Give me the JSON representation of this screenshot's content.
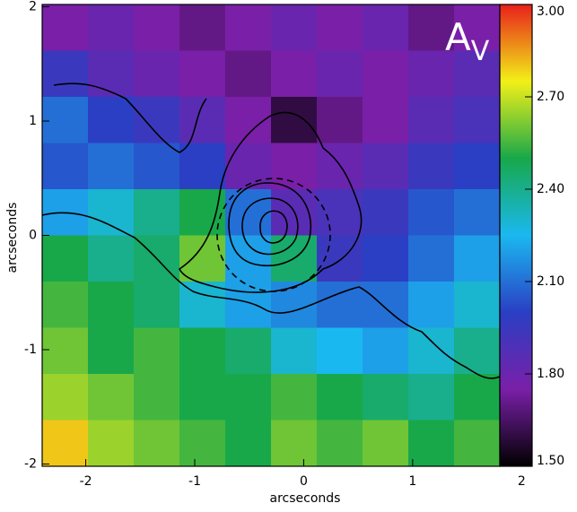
{
  "chart_data": {
    "type": "heatmap",
    "xlabel": "arcseconds",
    "ylabel": "arcseconds",
    "annotation": "A",
    "annotation_sub": "V",
    "xlim": [
      -2.4,
      1.8
    ],
    "ylim": [
      -2.02,
      2.02
    ],
    "xticks": [
      -2,
      -1,
      0,
      1,
      2
    ],
    "yticks": [
      -2,
      -1,
      0,
      1,
      2
    ],
    "clim": [
      1.5,
      3.0
    ],
    "cticks": [
      {
        "value": 1.5,
        "label": "1.50"
      },
      {
        "value": 1.8,
        "label": "1.80"
      },
      {
        "value": 2.1,
        "label": "2.10"
      },
      {
        "value": 2.4,
        "label": "2.40"
      },
      {
        "value": 2.7,
        "label": "2.70"
      },
      {
        "value": 3.0,
        "label": "3.00"
      }
    ],
    "colorscale": [
      "#000000",
      "#7a1fa8",
      "#2a3fc4",
      "#1ab8f0",
      "#18a84a",
      "#f2f018",
      "#e8201a"
    ],
    "z": [
      [
        1.75,
        1.8,
        1.75,
        1.7,
        1.75,
        1.8,
        1.75,
        1.8,
        1.7,
        1.75
      ],
      [
        1.95,
        1.85,
        1.8,
        1.75,
        1.7,
        1.75,
        1.8,
        1.75,
        1.8,
        1.85
      ],
      [
        2.1,
        2.0,
        1.95,
        1.85,
        1.75,
        1.6,
        1.7,
        1.75,
        1.85,
        1.9
      ],
      [
        2.05,
        2.1,
        2.05,
        2.0,
        1.8,
        1.75,
        1.8,
        1.85,
        1.95,
        2.0
      ],
      [
        2.2,
        2.3,
        2.4,
        2.5,
        2.1,
        1.85,
        1.9,
        1.95,
        2.05,
        2.1
      ],
      [
        2.5,
        2.4,
        2.45,
        2.6,
        2.2,
        2.45,
        1.95,
        2.0,
        2.1,
        2.2
      ],
      [
        2.55,
        2.5,
        2.45,
        2.3,
        2.2,
        2.15,
        2.1,
        2.1,
        2.2,
        2.3
      ],
      [
        2.6,
        2.5,
        2.55,
        2.5,
        2.45,
        2.3,
        2.25,
        2.2,
        2.3,
        2.4
      ],
      [
        2.65,
        2.6,
        2.55,
        2.5,
        2.5,
        2.55,
        2.5,
        2.45,
        2.4,
        2.5
      ],
      [
        2.8,
        2.65,
        2.6,
        2.55,
        2.5,
        2.6,
        2.55,
        2.6,
        2.5,
        2.55
      ]
    ]
  }
}
